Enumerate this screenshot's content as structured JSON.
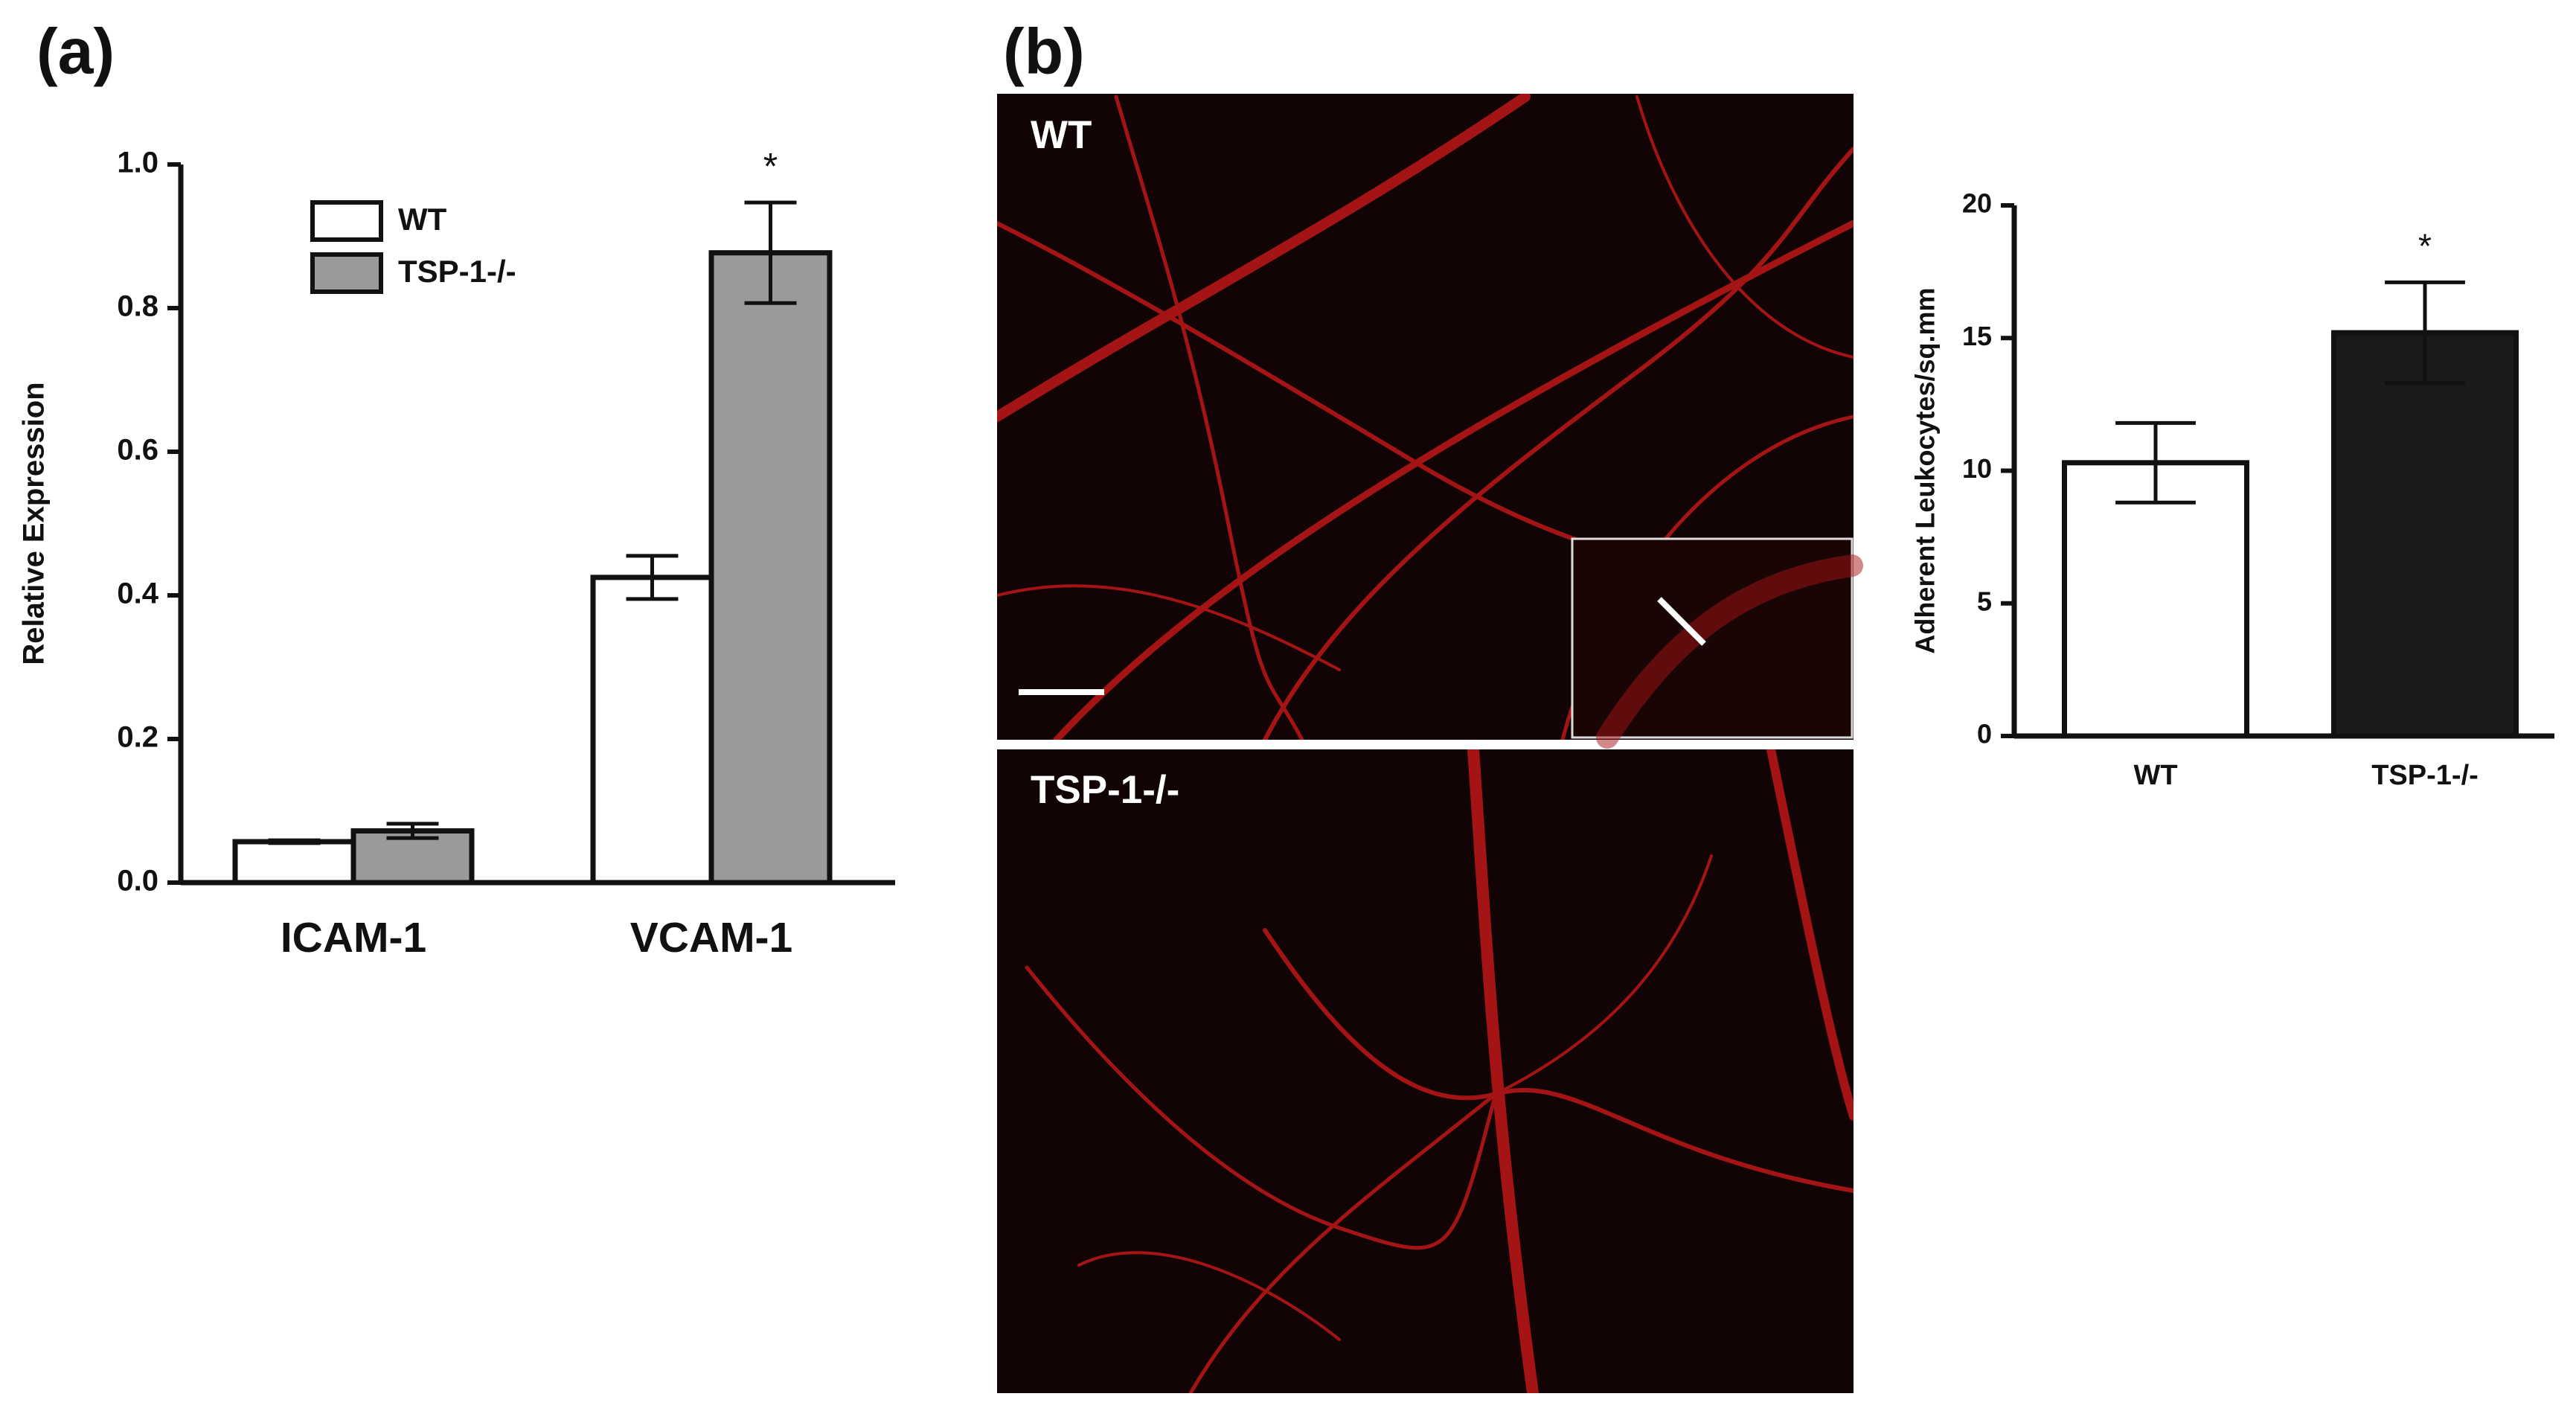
{
  "panel_labels": [
    "(a)",
    "(b)"
  ],
  "images": [
    {
      "label": "WT"
    },
    {
      "label": "TSP-1-/-"
    }
  ],
  "chart_data": [
    {
      "type": "bar",
      "ylabel": "Relative Expression",
      "categories": [
        "ICAM-1",
        "VCAM-1"
      ],
      "series": [
        {
          "name": "WT",
          "color": "#ffffff",
          "values": [
            0.057,
            0.425
          ],
          "errors": [
            0.002,
            0.03
          ]
        },
        {
          "name": "TSP-1-/-",
          "color": "#9a9a9a",
          "values": [
            0.072,
            0.877
          ],
          "errors": [
            0.01,
            0.07
          ]
        }
      ],
      "ylim": [
        0,
        1.0
      ],
      "yticks": [
        {
          "value": 0,
          "label": "0.0"
        },
        0.2,
        0.4,
        0.6,
        0.8,
        {
          "value": 1.0,
          "label": "1.0"
        }
      ],
      "annotations": [
        {
          "text": "*"
        }
      ],
      "legend": "upper-left"
    },
    {
      "type": "bar",
      "ylabel": "Adherent Leukocytes/sq.mm",
      "categories": [
        "WT",
        "TSP-1-/-"
      ],
      "values": [
        10.3,
        15.2
      ],
      "errors": [
        1.5,
        1.9
      ],
      "colors": [
        "#ffffff",
        "#1a1a1a"
      ],
      "ylim": [
        0,
        20
      ],
      "yticks": [
        0,
        5,
        10,
        15,
        20
      ],
      "annotations": [
        {
          "text": "*"
        }
      ]
    }
  ]
}
